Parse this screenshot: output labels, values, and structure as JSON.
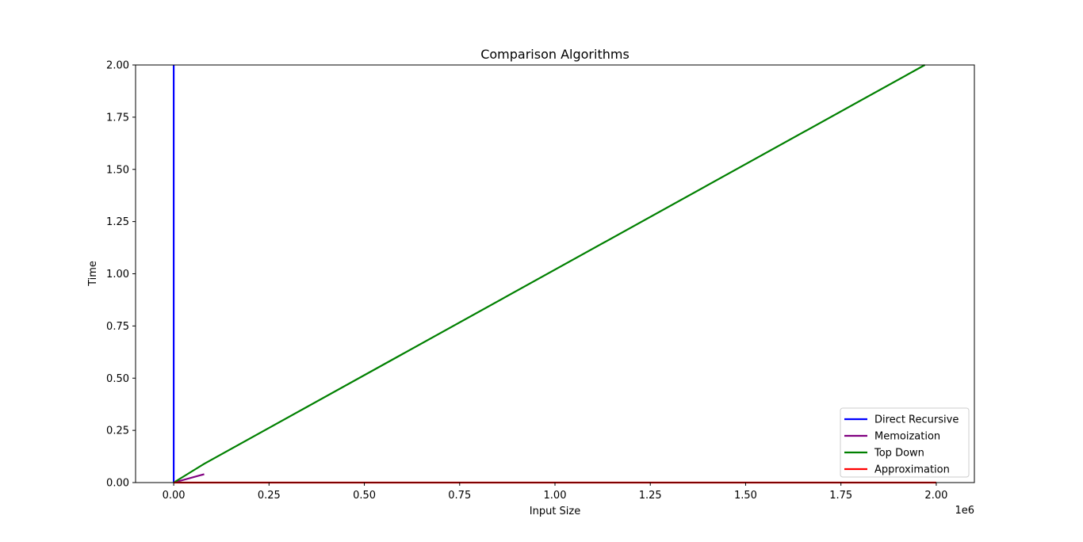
{
  "chart_data": {
    "type": "line",
    "title": "Comparison Algorithms",
    "xlabel": "Input Size",
    "ylabel": "Time",
    "x_offset_label": "1e6",
    "xlim": [
      -100000,
      2100000
    ],
    "ylim": [
      0,
      2
    ],
    "x_ticks": [
      0,
      250000,
      500000,
      750000,
      1000000,
      1250000,
      1500000,
      1750000,
      2000000
    ],
    "x_tick_labels": [
      "0.00",
      "0.25",
      "0.50",
      "0.75",
      "1.00",
      "1.25",
      "1.50",
      "1.75",
      "2.00"
    ],
    "y_ticks": [
      0,
      0.25,
      0.5,
      0.75,
      1.0,
      1.25,
      1.5,
      1.75,
      2.0
    ],
    "y_tick_labels": [
      "0.00",
      "0.25",
      "0.50",
      "0.75",
      "1.00",
      "1.25",
      "1.50",
      "1.75",
      "2.00"
    ],
    "grid": false,
    "legend_position": "lower-right",
    "series": [
      {
        "name": "Direct Recursive",
        "color": "#0000ff",
        "x": [
          0,
          0
        ],
        "y": [
          0,
          2.0
        ]
      },
      {
        "name": "Memoization",
        "color": "#800080",
        "x": [
          0,
          80000
        ],
        "y": [
          0,
          0.04
        ]
      },
      {
        "name": "Top Down",
        "color": "#008000",
        "x": [
          0,
          80000,
          1970000
        ],
        "y": [
          0,
          0.09,
          2.0
        ]
      },
      {
        "name": "Approximation",
        "color": "#ff0000",
        "x": [
          0,
          2000000
        ],
        "y": [
          0,
          0
        ]
      }
    ]
  }
}
